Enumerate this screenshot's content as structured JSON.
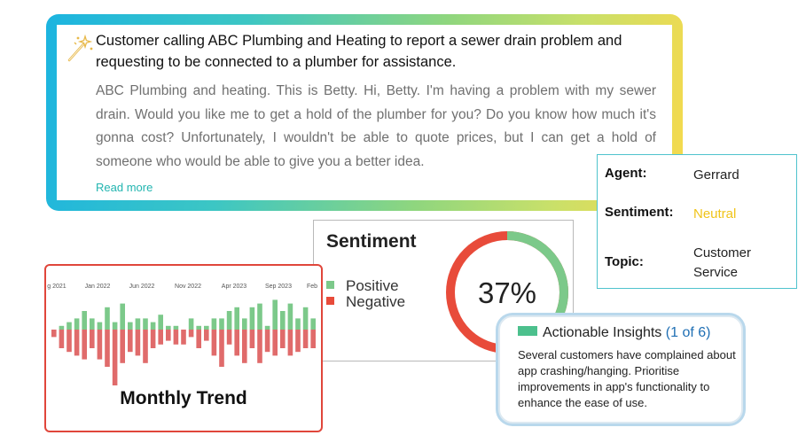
{
  "summary": {
    "title": "Customer calling ABC Plumbing and Heating to report a sewer drain problem and requesting to be connected to a plumber for assistance.",
    "transcript": "ABC Plumbing and heating. This is Betty. Hi, Betty. I'm having a problem with my sewer drain. Would you like me to get a hold of the plumber for you? Do you know how much it's gonna cost? Unfortunately, I wouldn't be able to quote prices, but I can get a hold of someone who would be able to give you a better idea.",
    "read_more": "Read more",
    "icon": "magic-wand-icon"
  },
  "agent_details": {
    "agent_label": "Agent:",
    "agent_value": "Gerrard",
    "sentiment_label": "Sentiment:",
    "sentiment_value": "Neutral",
    "topic_label": "Topic:",
    "topic_value": "Customer Service",
    "neutral_color": "#f0c419"
  },
  "sentiment": {
    "title": "Sentiment",
    "positive_label": "Positive",
    "negative_label": "Negative",
    "percent_text": "37%",
    "positive_fraction": 0.37,
    "positive_color": "#7cc98a",
    "negative_color": "#e84b3a"
  },
  "trend": {
    "title": "Monthly Trend",
    "positive_color": "#7cc98a",
    "negative_color": "#e06b6b"
  },
  "chart_data": {
    "type": "bar",
    "title": "Monthly Trend",
    "tick_labels": [
      "g 2021",
      "Jan 2022",
      "Jun 2022",
      "Nov 2022",
      "Apr 2023",
      "Sep 2023",
      "Feb"
    ],
    "series": [
      {
        "values": [
          0,
          1,
          2,
          3,
          5,
          3,
          2,
          6,
          2,
          7,
          2,
          3,
          3,
          2,
          4,
          1,
          1,
          0,
          3,
          1,
          1,
          3,
          3,
          5,
          6,
          3,
          6,
          7,
          1,
          8,
          5,
          7,
          3,
          6,
          3
        ]
      },
      {
        "values": [
          2,
          5,
          6,
          7,
          8,
          5,
          8,
          10,
          15,
          9,
          6,
          7,
          9,
          5,
          4,
          3,
          4,
          4,
          2,
          5,
          3,
          7,
          10,
          4,
          7,
          9,
          5,
          9,
          6,
          7,
          5,
          7,
          6,
          5,
          5
        ]
      }
    ]
  },
  "insights": {
    "heading": "Actionable Insights",
    "count": "(1 of 6)",
    "text": "Several customers have complained about app crashing/hanging. Prioritise improvements in app's functionality to enhance the ease of use.",
    "accent_color": "#4cc08d"
  }
}
